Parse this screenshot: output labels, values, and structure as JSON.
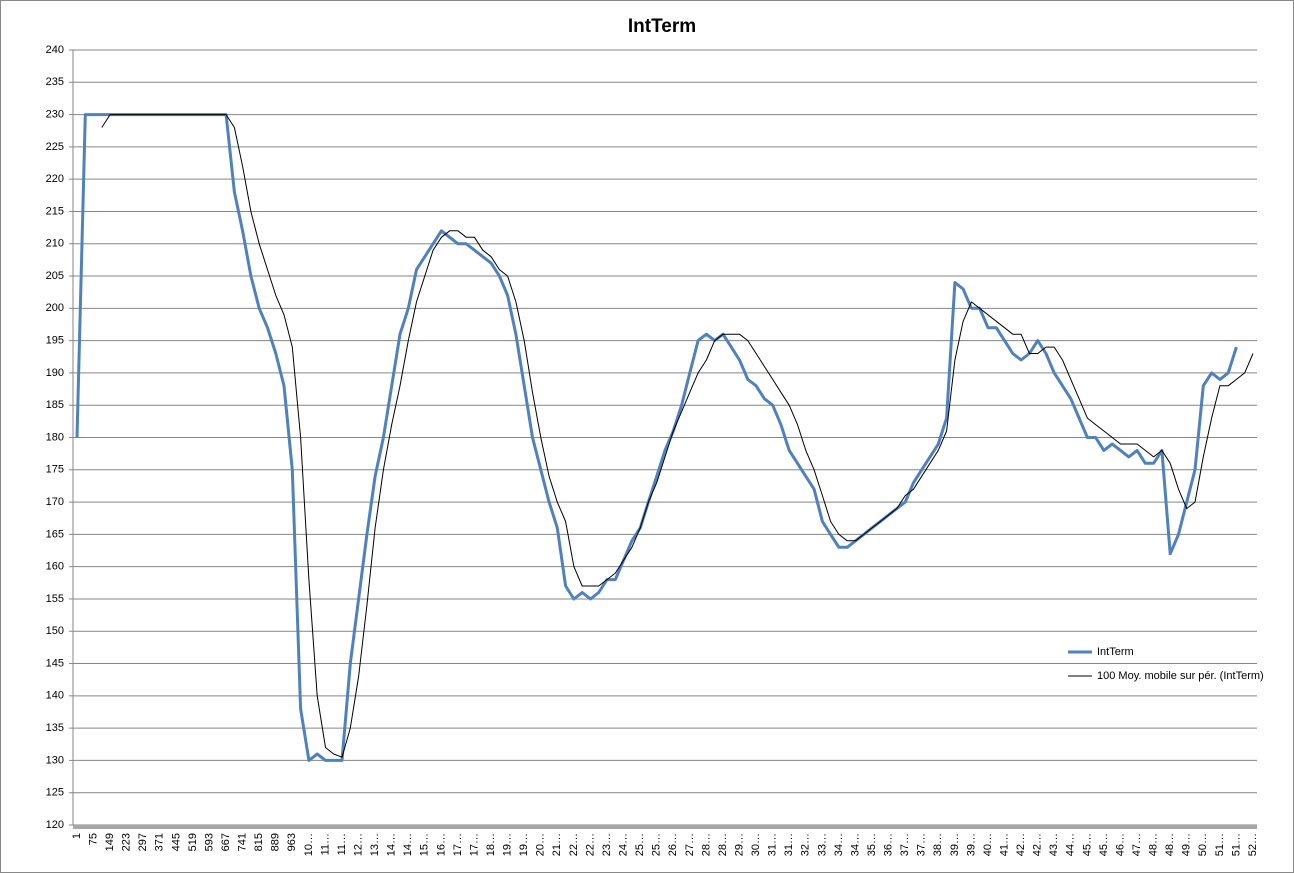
{
  "chart_data": {
    "type": "line",
    "title": "IntTerm",
    "categories": [
      "1",
      null,
      "75",
      null,
      "149",
      null,
      "223",
      null,
      "297",
      null,
      "371",
      null,
      "445",
      null,
      "519",
      null,
      "593",
      null,
      "667",
      null,
      "741",
      null,
      "815",
      null,
      "889",
      null,
      "963",
      null,
      "10…",
      null,
      "11…",
      null,
      "11…",
      null,
      "12…",
      null,
      "13…",
      null,
      "14…",
      null,
      "14…",
      null,
      "15…",
      null,
      "16…",
      null,
      "17…",
      null,
      "17…",
      null,
      "18…",
      null,
      "19…",
      null,
      "19…",
      null,
      "20…",
      null,
      "21…",
      null,
      "22…",
      null,
      "22…",
      null,
      "23…",
      null,
      "24…",
      null,
      "25…",
      null,
      "25…",
      null,
      "26…",
      null,
      "27…",
      null,
      "28…",
      null,
      "28…",
      null,
      "29…",
      null,
      "30…",
      null,
      "31…",
      null,
      "31…",
      null,
      "32…",
      null,
      "33…",
      null,
      "34…",
      null,
      "34…",
      null,
      "35…",
      null,
      "36…",
      null,
      "37…",
      null,
      "37…",
      null,
      "38…",
      null,
      "39…",
      null,
      "39…",
      null,
      "40…",
      null,
      "41…",
      null,
      "42…",
      null,
      "42…",
      null,
      "43…",
      null,
      "44…",
      null,
      "45…",
      null,
      "45…",
      null,
      "46…",
      null,
      "47…",
      null,
      "48…",
      null,
      "48…",
      null,
      "49…",
      null,
      "50…",
      null,
      "51…",
      null,
      "51…",
      null,
      "52…"
    ],
    "series": [
      {
        "name": "IntTerm",
        "color": "#4f81bd",
        "width": 3,
        "values": [
          180,
          230,
          230,
          230,
          230,
          230,
          230,
          230,
          230,
          230,
          230,
          230,
          230,
          230,
          230,
          230,
          230,
          230,
          230,
          218,
          212,
          205,
          200,
          197,
          193,
          188,
          175,
          138,
          130,
          131,
          130,
          130,
          130,
          145,
          155,
          165,
          174,
          180,
          188,
          196,
          200,
          206,
          208,
          210,
          212,
          211,
          210,
          210,
          209,
          208,
          207,
          205,
          202,
          196,
          188,
          180,
          175,
          170,
          166,
          157,
          155,
          156,
          155,
          156,
          158,
          158,
          161,
          164,
          166,
          170,
          174,
          178,
          181,
          185,
          190,
          195,
          196,
          195,
          196,
          194,
          192,
          189,
          188,
          186,
          185,
          182,
          178,
          176,
          174,
          172,
          167,
          165,
          163,
          163,
          164,
          165,
          166,
          167,
          168,
          169,
          170,
          173,
          175,
          177,
          179,
          183,
          204,
          203,
          200,
          200,
          197,
          197,
          195,
          193,
          192,
          193,
          195,
          193,
          190,
          188,
          186,
          183,
          180,
          180,
          178,
          179,
          178,
          177,
          178,
          176,
          176,
          178,
          162,
          165,
          170,
          175,
          188,
          190,
          189,
          190,
          194,
          null,
          null
        ]
      },
      {
        "name": "100 Moy. mobile sur pér. (IntTerm)",
        "color": "#000000",
        "width": 1,
        "values": [
          null,
          null,
          null,
          228,
          230,
          230,
          230,
          230,
          230,
          230,
          230,
          230,
          230,
          230,
          230,
          230,
          230,
          230,
          230,
          228,
          222,
          215,
          210,
          206,
          202,
          199,
          194,
          180,
          158,
          140,
          132,
          131,
          130.5,
          135,
          143,
          154,
          166,
          175,
          182,
          188,
          195,
          201,
          205,
          209,
          211,
          212,
          212,
          211,
          211,
          209,
          208,
          206,
          205,
          201,
          195,
          187,
          180,
          174,
          170,
          167,
          160,
          157,
          157,
          157,
          158,
          159,
          161,
          163,
          166,
          170,
          173,
          177,
          181,
          184,
          187,
          190,
          192,
          195,
          196,
          196,
          196,
          195,
          193,
          191,
          189,
          187,
          185,
          182,
          178,
          175,
          171,
          167,
          165,
          164,
          164,
          165,
          166,
          167,
          168,
          169,
          171,
          172,
          174,
          176,
          178,
          181,
          192,
          198,
          201,
          200,
          199,
          198,
          197,
          196,
          196,
          193,
          193,
          194,
          194,
          192,
          189,
          186,
          183,
          182,
          181,
          180,
          179,
          179,
          179,
          178,
          177,
          178,
          176,
          172,
          169,
          170,
          177,
          183,
          188,
          188,
          189,
          190,
          193
        ]
      }
    ],
    "ylim": [
      120,
      240
    ],
    "yticks": [
      120,
      125,
      130,
      135,
      140,
      145,
      150,
      155,
      160,
      165,
      170,
      175,
      180,
      185,
      190,
      195,
      200,
      205,
      210,
      215,
      220,
      225,
      230,
      235,
      240
    ],
    "grid": true,
    "legend": "right"
  }
}
